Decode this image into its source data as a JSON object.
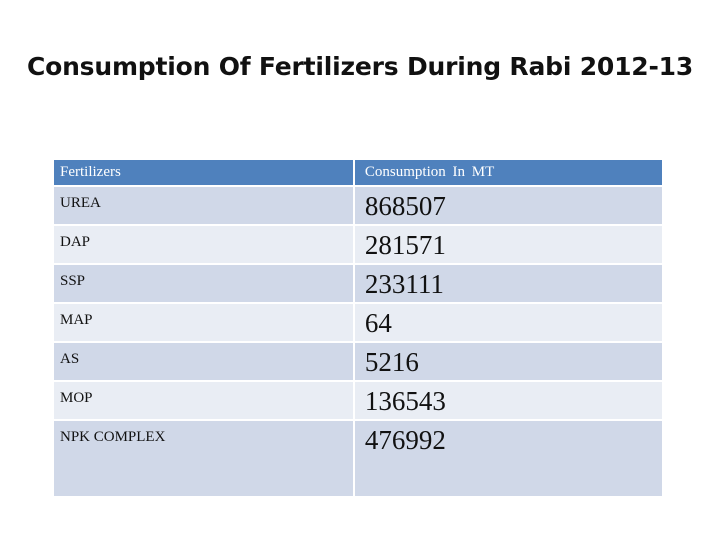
{
  "title": "Consumption Of Fertilizers During Rabi 2012-13",
  "table": {
    "headers": [
      "Fertilizers",
      "Consumption  In  MT"
    ],
    "rows": [
      {
        "name": "UREA",
        "value": "868507"
      },
      {
        "name": "DAP",
        "value": "281571"
      },
      {
        "name": "SSP",
        "value": "233111"
      },
      {
        "name": "MAP",
        "value": "64"
      },
      {
        "name": "AS",
        "value": "5216"
      },
      {
        "name": "MOP",
        "value": "136543"
      },
      {
        "name": "NPK COMPLEX",
        "value": "476992"
      }
    ]
  },
  "colors": {
    "header_bg": "#4f81bd",
    "row_bg": "#d0d8e8",
    "row_alt_bg": "#e9edf4"
  }
}
